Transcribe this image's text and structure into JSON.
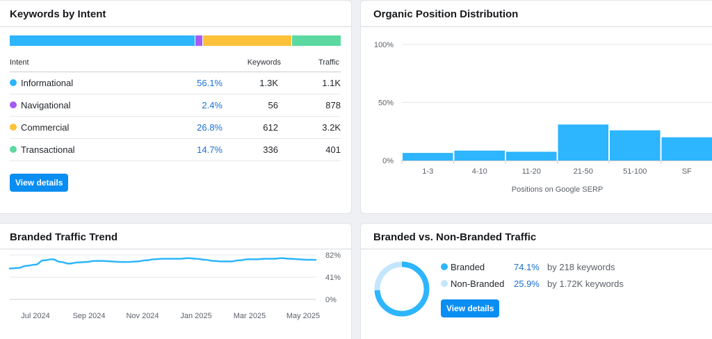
{
  "colors": {
    "informational": "#2db5fd",
    "navigational": "#a55cf2",
    "commercial": "#fdc239",
    "transactional": "#5bd9a1",
    "bar": "#2db5fd",
    "branded": "#2db5fd",
    "non_branded": "#c4e6fd",
    "link": "#1a6fd0",
    "button": "#0b8ef2"
  },
  "keywords_by_intent": {
    "title": "Keywords by Intent",
    "headers": {
      "intent": "Intent",
      "keywords": "Keywords",
      "traffic": "Traffic"
    },
    "rows": [
      {
        "name": "Informational",
        "pct": "56.1%",
        "share": 56.1,
        "keywords": "1.3K",
        "traffic": "1.1K",
        "color": "#2db5fd"
      },
      {
        "name": "Navigational",
        "pct": "2.4%",
        "share": 2.4,
        "keywords": "56",
        "traffic": "878",
        "color": "#a55cf2"
      },
      {
        "name": "Commercial",
        "pct": "26.8%",
        "share": 26.8,
        "keywords": "612",
        "traffic": "3.2K",
        "color": "#fdc239"
      },
      {
        "name": "Transactional",
        "pct": "14.7%",
        "share": 14.7,
        "keywords": "336",
        "traffic": "401",
        "color": "#5bd9a1"
      }
    ],
    "button": "View details"
  },
  "organic_position": {
    "title": "Organic Position Distribution",
    "chart_data": {
      "type": "bar",
      "categories": [
        "1-3",
        "4-10",
        "11-20",
        "21-50",
        "51-100",
        "SF"
      ],
      "values": [
        6.5,
        8.5,
        7.5,
        31,
        26,
        20
      ],
      "xlabel": "Positions on Google SERP",
      "ylabel": "",
      "ylim": [
        0,
        100
      ],
      "yticks": [
        "0%",
        "50%",
        "100%"
      ],
      "grid": true
    }
  },
  "branded_trend": {
    "title": "Branded Traffic Trend",
    "chart_data": {
      "type": "line",
      "x_labels": [
        "Jul 2024",
        "Sep 2024",
        "Nov 2024",
        "Jan 2025",
        "Mar 2025",
        "May 2025"
      ],
      "values": [
        57,
        58,
        62,
        64,
        72,
        74,
        69,
        66,
        68,
        69,
        71,
        71,
        70,
        69,
        69,
        70,
        72,
        74,
        75,
        75,
        75,
        76,
        75,
        73,
        71,
        70,
        70,
        72,
        74,
        74,
        75,
        75,
        76,
        75,
        74,
        73,
        73
      ],
      "ylim": [
        0,
        82
      ],
      "yticks": [
        "0%",
        "41%",
        "82%"
      ],
      "grid": true
    }
  },
  "branded_vs_non": {
    "title": "Branded vs. Non-Branded Traffic",
    "chart_data": {
      "type": "pie",
      "labels": [
        "Branded",
        "Non-Branded"
      ],
      "values": [
        74.1,
        25.9
      ]
    },
    "legend": [
      {
        "name": "Branded",
        "pct": "74.1%",
        "kw": "by 218 keywords",
        "color": "#2db5fd"
      },
      {
        "name": "Non-Branded",
        "pct": "25.9%",
        "kw": "by 1.72K keywords",
        "color": "#c4e6fd"
      }
    ],
    "button": "View details"
  }
}
